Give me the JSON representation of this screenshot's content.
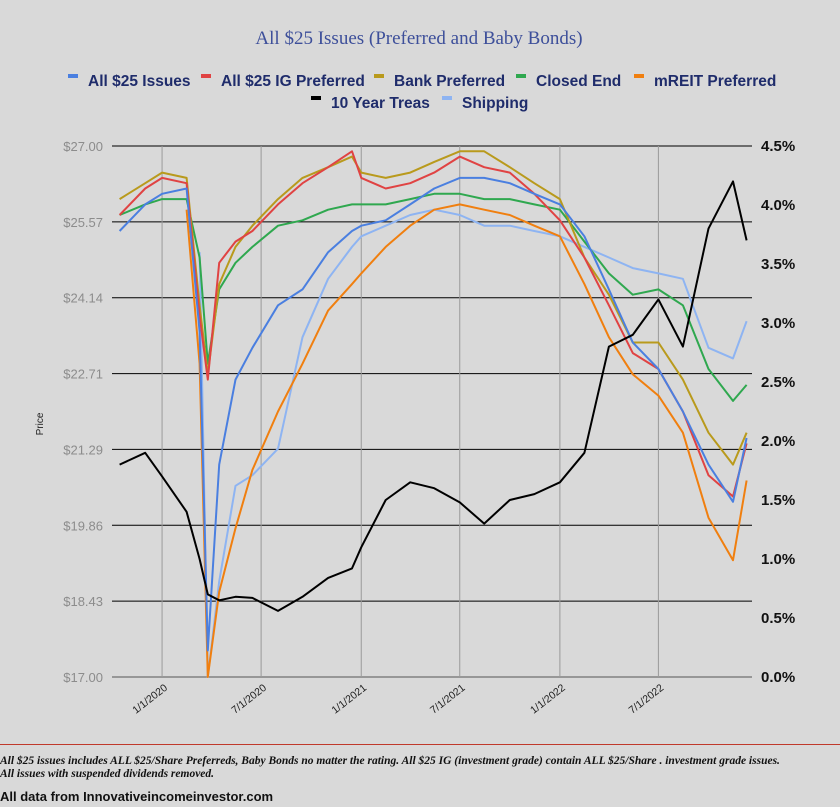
{
  "chart_data": {
    "type": "line",
    "title": "All $25 Issues (Preferred and Baby Bonds)",
    "ylabel": "Price",
    "ylim": [
      17.0,
      27.0
    ],
    "y2lim": [
      0.0,
      4.5
    ],
    "grid": "horizontal",
    "legend_placement": "top",
    "yticks": [
      "$17.00",
      "$18.43",
      "$19.86",
      "$21.29",
      "$22.71",
      "$24.14",
      "$25.57",
      "$27.00"
    ],
    "y2ticks": [
      "0.0%",
      "0.5%",
      "1.0%",
      "1.5%",
      "2.0%",
      "2.5%",
      "3.0%",
      "3.5%",
      "4.0%",
      "4.5%"
    ],
    "xticks": [
      "1/1/2020",
      "7/1/2020",
      "1/1/2021",
      "7/1/2021",
      "1/1/2022",
      "7/1/2022"
    ],
    "x": [
      "2019-10-15",
      "2019-12-01",
      "2020-01-01",
      "2020-02-15",
      "2020-03-10",
      "2020-03-25",
      "2020-04-15",
      "2020-05-15",
      "2020-06-15",
      "2020-08-01",
      "2020-09-15",
      "2020-11-01",
      "2020-12-15",
      "2021-01-01",
      "2021-02-15",
      "2021-04-01",
      "2021-05-15",
      "2021-07-01",
      "2021-08-15",
      "2021-10-01",
      "2021-11-15",
      "2022-01-01",
      "2022-02-15",
      "2022-04-01",
      "2022-05-15",
      "2022-07-01",
      "2022-08-15",
      "2022-10-01",
      "2022-11-15",
      "2022-12-10"
    ],
    "series": [
      {
        "name": "All $25 Issues",
        "color": "#4a7fe0",
        "axis": "left",
        "values": [
          25.4,
          25.9,
          26.1,
          26.2,
          23.5,
          17.5,
          21.0,
          22.6,
          23.2,
          24.0,
          24.3,
          25.0,
          25.4,
          25.5,
          25.6,
          25.9,
          26.2,
          26.4,
          26.4,
          26.3,
          26.1,
          25.9,
          25.3,
          24.3,
          23.3,
          22.8,
          22.0,
          21.0,
          20.3,
          21.5
        ]
      },
      {
        "name": "All $25 IG Preferred",
        "color": "#e04343",
        "axis": "left",
        "values": [
          25.7,
          26.2,
          26.4,
          26.3,
          23.8,
          22.6,
          24.8,
          25.2,
          25.4,
          25.9,
          26.3,
          26.6,
          26.9,
          26.4,
          26.2,
          26.3,
          26.5,
          26.8,
          26.6,
          26.5,
          26.1,
          25.6,
          24.9,
          24.0,
          23.1,
          22.8,
          22.0,
          20.8,
          20.4,
          21.4
        ]
      },
      {
        "name": "Bank Preferred",
        "color": "#b99a1c",
        "axis": "left",
        "values": [
          26.0,
          26.3,
          26.5,
          26.4,
          24.0,
          22.7,
          24.4,
          25.1,
          25.5,
          26.0,
          26.4,
          26.6,
          26.8,
          26.5,
          26.4,
          26.5,
          26.7,
          26.9,
          26.9,
          26.6,
          26.3,
          26.0,
          24.9,
          24.2,
          23.3,
          23.3,
          22.6,
          21.6,
          21.0,
          21.6
        ]
      },
      {
        "name": "Closed End",
        "color": "#2fa84f",
        "axis": "left",
        "values": [
          25.7,
          25.9,
          26.0,
          26.0,
          24.9,
          22.9,
          24.3,
          24.8,
          25.1,
          25.5,
          25.6,
          25.8,
          25.9,
          25.9,
          25.9,
          26.0,
          26.1,
          26.1,
          26.0,
          26.0,
          25.9,
          25.8,
          25.2,
          24.6,
          24.2,
          24.3,
          24.0,
          22.8,
          22.2,
          22.5
        ]
      },
      {
        "name": "mREIT Preferred",
        "color": "#f07f0f",
        "axis": "left",
        "values": [
          null,
          null,
          null,
          25.8,
          22.9,
          17.0,
          18.6,
          19.8,
          20.9,
          22.0,
          22.9,
          23.9,
          24.4,
          24.6,
          25.1,
          25.5,
          25.8,
          25.9,
          25.8,
          25.7,
          25.5,
          25.3,
          24.4,
          23.4,
          22.7,
          22.3,
          21.6,
          20.0,
          19.2,
          20.7
        ]
      },
      {
        "name": "10 Year Treas",
        "color": "#000000",
        "axis": "right",
        "values": [
          1.8,
          1.9,
          1.7,
          1.4,
          1.0,
          0.7,
          0.65,
          0.68,
          0.67,
          0.56,
          0.68,
          0.84,
          0.92,
          1.1,
          1.5,
          1.65,
          1.6,
          1.48,
          1.3,
          1.5,
          1.55,
          1.65,
          1.9,
          2.8,
          2.9,
          3.2,
          2.8,
          3.8,
          4.2,
          3.7
        ]
      },
      {
        "name": "Shipping",
        "color": "#8eb4f2",
        "axis": "left",
        "values": [
          null,
          null,
          null,
          null,
          25.0,
          17.0,
          18.8,
          20.6,
          20.8,
          21.3,
          23.4,
          24.5,
          25.1,
          25.3,
          25.5,
          25.7,
          25.8,
          25.7,
          25.5,
          25.5,
          25.4,
          25.3,
          25.1,
          24.9,
          24.7,
          24.6,
          24.5,
          23.2,
          23.0,
          23.7
        ]
      }
    ]
  },
  "footer": {
    "note": "All $25 issues includes ALL $25/Share Preferreds, Baby Bonds no matter the rating. All $25 IG (investment grade) contain ALL $25/Share . investment grade issues.  All issues with suspended dividends removed.",
    "source": "All data from Innovativeincomeinvestor.com"
  }
}
